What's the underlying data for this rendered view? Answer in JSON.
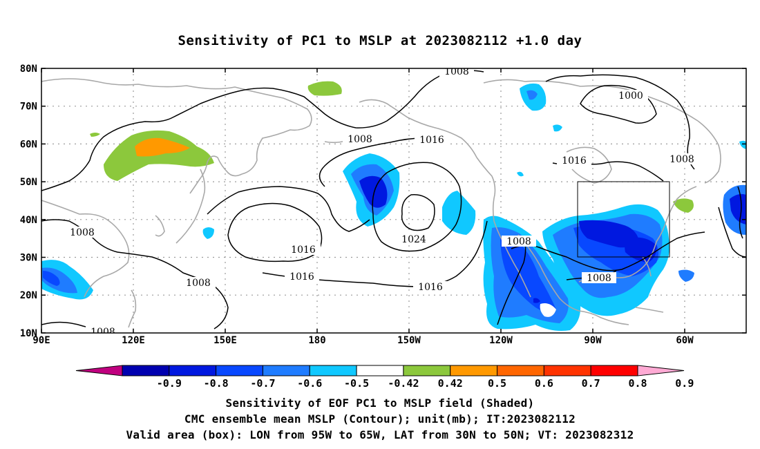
{
  "title": "Sensitivity of PC1 to MSLP at 2023082112 +1.0 day",
  "map": {
    "x_ticks": [
      "90E",
      "120E",
      "150E",
      "180",
      "150W",
      "120W",
      "90W",
      "60W"
    ],
    "y_ticks": [
      "80N",
      "70N",
      "60N",
      "50N",
      "40N",
      "30N",
      "20N",
      "10N"
    ],
    "contour_labels": [
      "1008",
      "1000",
      "1016",
      "1008",
      "1008",
      "1016",
      "1024",
      "1016",
      "1016",
      "1008",
      "1008",
      "1016",
      "1008",
      "1008",
      "1008"
    ],
    "valid_box": {
      "lon_from": "95W",
      "lon_to": "65W",
      "lat_from": "30N",
      "lat_to": "50N"
    }
  },
  "colorbar": {
    "labels": [
      "-0.9",
      "-0.8",
      "-0.7",
      "-0.6",
      "-0.5",
      "-0.42",
      "0.42",
      "0.5",
      "0.6",
      "0.7",
      "0.8",
      "0.9"
    ],
    "colors": [
      "#c0007f",
      "#0000b0",
      "#0018e0",
      "#0848ff",
      "#1f7cff",
      "#10c8ff",
      "#ffffff",
      "#8cc83c",
      "#ff9900",
      "#ff6600",
      "#ff3300",
      "#ff0000",
      "#ffaad4"
    ]
  },
  "captions": {
    "line1": "Sensitivity of EOF PC1 to MSLP field (Shaded)",
    "line2": "CMC ensemble mean MSLP (Contour); unit(mb); IT:2023082112",
    "line3": "Valid area (box): LON from 95W to 65W, LAT from 30N to 50N; VT: 2023082312"
  }
}
